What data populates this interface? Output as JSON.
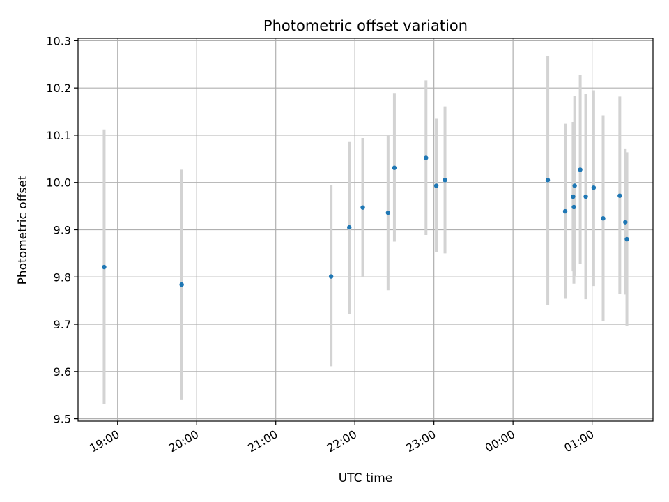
{
  "chart_data": {
    "type": "scatter",
    "title": "Photometric offset variation",
    "xlabel": "UTC time",
    "ylabel": "Photometric offset",
    "x_tick_labels": [
      "19:00",
      "20:00",
      "21:00",
      "22:00",
      "23:00",
      "00:00",
      "01:00"
    ],
    "y_tick_labels": [
      "9.5",
      "9.6",
      "9.7",
      "9.8",
      "9.9",
      "10.0",
      "10.1",
      "10.2",
      "10.3"
    ],
    "x_unit": "hours",
    "x_tick_values": [
      19,
      20,
      21,
      22,
      23,
      24,
      25
    ],
    "y_tick_values": [
      9.5,
      9.6,
      9.7,
      9.8,
      9.9,
      10.0,
      10.1,
      10.2,
      10.3
    ],
    "xlim": [
      18.5,
      25.77
    ],
    "ylim": [
      9.495,
      10.305
    ],
    "grid": true,
    "point_color": "#1f77b4",
    "errorbar_color": "#d3d3d3",
    "points": [
      {
        "x": 18.83,
        "y": 9.821,
        "ylow": 9.531,
        "yhigh": 10.112
      },
      {
        "x": 19.81,
        "y": 9.784,
        "ylow": 9.541,
        "yhigh": 10.027
      },
      {
        "x": 21.7,
        "y": 9.801,
        "ylow": 9.611,
        "yhigh": 9.994
      },
      {
        "x": 21.93,
        "y": 9.905,
        "ylow": 9.722,
        "yhigh": 10.087
      },
      {
        "x": 22.1,
        "y": 9.947,
        "ylow": 9.799,
        "yhigh": 10.094
      },
      {
        "x": 22.42,
        "y": 9.936,
        "ylow": 9.772,
        "yhigh": 10.1
      },
      {
        "x": 22.5,
        "y": 10.031,
        "ylow": 9.875,
        "yhigh": 10.188
      },
      {
        "x": 22.9,
        "y": 10.052,
        "ylow": 9.889,
        "yhigh": 10.216
      },
      {
        "x": 23.03,
        "y": 9.993,
        "ylow": 9.852,
        "yhigh": 10.136
      },
      {
        "x": 23.14,
        "y": 10.005,
        "ylow": 9.85,
        "yhigh": 10.161
      },
      {
        "x": 24.44,
        "y": 10.005,
        "ylow": 9.741,
        "yhigh": 10.267
      },
      {
        "x": 24.66,
        "y": 9.939,
        "ylow": 9.754,
        "yhigh": 10.124
      },
      {
        "x": 24.76,
        "y": 9.97,
        "ylow": 9.812,
        "yhigh": 10.128
      },
      {
        "x": 24.77,
        "y": 9.948,
        "ylow": 9.786,
        "yhigh": 10.11
      },
      {
        "x": 24.78,
        "y": 9.993,
        "ylow": 9.802,
        "yhigh": 10.183
      },
      {
        "x": 24.85,
        "y": 10.027,
        "ylow": 9.828,
        "yhigh": 10.227
      },
      {
        "x": 24.92,
        "y": 9.97,
        "ylow": 9.753,
        "yhigh": 10.187
      },
      {
        "x": 25.02,
        "y": 9.989,
        "ylow": 9.781,
        "yhigh": 10.195
      },
      {
        "x": 25.14,
        "y": 9.924,
        "ylow": 9.706,
        "yhigh": 10.142
      },
      {
        "x": 25.35,
        "y": 9.972,
        "ylow": 9.765,
        "yhigh": 10.182
      },
      {
        "x": 25.42,
        "y": 9.916,
        "ylow": 9.763,
        "yhigh": 10.072
      },
      {
        "x": 25.44,
        "y": 9.88,
        "ylow": 9.696,
        "yhigh": 10.064
      }
    ]
  }
}
